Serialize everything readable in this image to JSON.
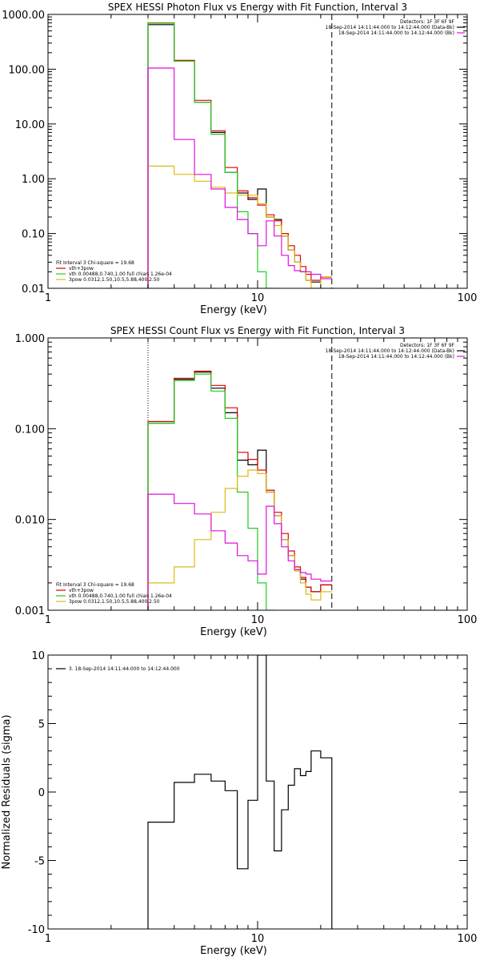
{
  "colors": {
    "background": "#ffffff",
    "axis": "#000000",
    "black": "#000000",
    "red": "#dd0000",
    "green": "#22cc22",
    "magenta": "#dd11dd",
    "yellow": "#ddbb11"
  },
  "chart_data": [
    {
      "type": "line",
      "title": "SPEX HESSI Photon Flux vs Energy with Fit Function, Interval 3",
      "xlabel": "Energy (keV)",
      "ylabel": "",
      "xscale": "log",
      "yscale": "log",
      "xlim": [
        1,
        100
      ],
      "ylim": [
        0.01,
        1000
      ],
      "xticks": [
        1,
        10,
        100
      ],
      "xtick_labels": [
        "1",
        "10",
        "100"
      ],
      "yticks": [
        0.01,
        0.1,
        1,
        10,
        100,
        1000
      ],
      "ytick_labels": [
        "0.01",
        "0.10",
        "1.00",
        "10.00",
        "100.00",
        "1000.00"
      ],
      "vlines": [
        {
          "x": 3,
          "style": "dotted",
          "color": "#ddbb11"
        },
        {
          "x": 22.6,
          "style": "dashed",
          "color": "#000000"
        }
      ],
      "legend_right": [
        "Detectors: 1F 3F 6F 9F",
        "18-Sep-2014 14:11:44.000 to 14:12:44.000 (Data-Bk)",
        "18-Sep-2014 14:11:44.000 to 14:12:44.000 (Bk)"
      ],
      "legend_left": [
        "Fit Interval 3   Chi-square = 19.68",
        "vth+3pow",
        "vth 0.00488,0.740,1.00  full chian 1.26e-04",
        "3pow 0.0312,1.50,10.5,5.88,400,2.50"
      ],
      "bin_edges": [
        3,
        4,
        5,
        6,
        7,
        8,
        9,
        10,
        11,
        12,
        13,
        14,
        15,
        16,
        17,
        18,
        20,
        22.6
      ],
      "series": [
        {
          "name": "18-Sep-2014 14:11:44.000 to 14:12:44.000 (Data-Bk)",
          "color": "#000000",
          "values": [
            650,
            140,
            25,
            7,
            1.3,
            0.55,
            0.42,
            0.65,
            0.2,
            0.18,
            0.09,
            0.05,
            0.03,
            0.02,
            0.014,
            0.013,
            0.016
          ]
        },
        {
          "name": "vth+3pow",
          "color": "#dd0000",
          "values": [
            700,
            145,
            27,
            7.5,
            1.6,
            0.6,
            0.45,
            0.33,
            0.22,
            0.17,
            0.1,
            0.06,
            0.04,
            0.025,
            0.018,
            0.014,
            0.016
          ]
        },
        {
          "name": "vth 0.00488,0.740,1.00  full chian 1.26e-04",
          "color": "#22cc22",
          "values": [
            690,
            140,
            25,
            6.5,
            1.3,
            0.25,
            0.1,
            0.02,
            0.005
          ]
        },
        {
          "name": "3pow 0.0312,1.50,10.5,5.88,400,2.50",
          "color": "#ddbb11",
          "values": [
            1.7,
            1.2,
            0.9,
            0.7,
            0.55,
            0.5,
            0.5,
            0.35,
            0.2,
            0.14,
            0.09,
            0.05,
            0.03,
            0.02,
            0.014,
            0.01,
            0.016
          ]
        },
        {
          "name": "18-Sep-2014 14:11:44.000 to 14:12:44.000 (Bk)",
          "color": "#dd11dd",
          "values": [
            105,
            5.2,
            1.2,
            0.65,
            0.3,
            0.18,
            0.1,
            0.06,
            0.17,
            0.09,
            0.04,
            0.026,
            0.021,
            0.02,
            0.02,
            0.018,
            0.015
          ]
        }
      ]
    },
    {
      "type": "line",
      "title": "SPEX HESSI Count Flux vs Energy with Fit Function, Interval 3",
      "xlabel": "Energy (keV)",
      "ylabel": "",
      "xscale": "log",
      "yscale": "log",
      "xlim": [
        1,
        100
      ],
      "ylim": [
        0.001,
        1
      ],
      "xticks": [
        1,
        10,
        100
      ],
      "xtick_labels": [
        "1",
        "10",
        "100"
      ],
      "yticks": [
        0.001,
        0.01,
        0.1,
        1
      ],
      "ytick_labels": [
        "0.001",
        "0.010",
        "0.100",
        "1.000"
      ],
      "vlines": [
        {
          "x": 3,
          "style": "dotted",
          "color": "#000000"
        },
        {
          "x": 22.6,
          "style": "dashed",
          "color": "#000000"
        }
      ],
      "legend_right": [
        "Detectors: 1F 3F 6F 9F",
        "18-Sep-2014 14:11:44.000 to 14:12:44.000 (Data-Bk)",
        "18-Sep-2014 14:11:44.000 to 14:12:44.000 (Bk)"
      ],
      "legend_left": [
        "Fit Interval 3   Chi-square = 19.68",
        "vth+3pow",
        "vth 0.00488,0.740,1.00  full chian 1.26e-04",
        "3pow 0.0312,1.50,10.5,5.88,400,2.50"
      ],
      "bin_edges": [
        3,
        4,
        5,
        6,
        7,
        8,
        9,
        10,
        11,
        12,
        13,
        14,
        15,
        16,
        17,
        18,
        20,
        22.6
      ],
      "series": [
        {
          "name": "18-Sep-2014 14:11:44.000 to 14:12:44.000 (Data-Bk)",
          "color": "#000000",
          "values": [
            0.115,
            0.35,
            0.42,
            0.28,
            0.15,
            0.045,
            0.04,
            0.058,
            0.02,
            0.011,
            0.006,
            0.004,
            0.0028,
            0.0022,
            0.0018,
            0.0016,
            0.0019
          ]
        },
        {
          "name": "vth+3pow",
          "color": "#dd0000",
          "values": [
            0.12,
            0.36,
            0.43,
            0.3,
            0.17,
            0.055,
            0.046,
            0.035,
            0.021,
            0.012,
            0.007,
            0.0045,
            0.003,
            0.0023,
            0.0018,
            0.0016,
            0.0019
          ]
        },
        {
          "name": "vth 0.00488,0.740,1.00  full chian 1.26e-04",
          "color": "#22cc22",
          "values": [
            0.115,
            0.34,
            0.4,
            0.26,
            0.13,
            0.02,
            0.008,
            0.002,
            0.0006
          ]
        },
        {
          "name": "3pow 0.0312,1.50,10.5,5.88,400,2.50",
          "color": "#ddbb11",
          "values": [
            0.002,
            0.003,
            0.006,
            0.012,
            0.022,
            0.03,
            0.035,
            0.032,
            0.02,
            0.011,
            0.006,
            0.004,
            0.0027,
            0.002,
            0.0015,
            0.0013,
            0.0016
          ]
        },
        {
          "name": "18-Sep-2014 14:11:44.000 to 14:12:44.000 (Bk)",
          "color": "#dd11dd",
          "values": [
            0.019,
            0.015,
            0.0115,
            0.0075,
            0.0055,
            0.004,
            0.0035,
            0.0025,
            0.014,
            0.009,
            0.005,
            0.0035,
            0.0028,
            0.0026,
            0.0025,
            0.0022,
            0.0021
          ]
        }
      ]
    },
    {
      "type": "line",
      "title": "",
      "xlabel": "Energy (keV)",
      "ylabel": "Normalized Residuals (sigma)",
      "xscale": "log",
      "yscale": "linear",
      "xlim": [
        1,
        100
      ],
      "ylim": [
        -10,
        10
      ],
      "xticks": [
        1,
        10,
        100
      ],
      "xtick_labels": [
        "1",
        "10",
        "100"
      ],
      "yticks": [
        -10,
        -5,
        0,
        5,
        10
      ],
      "ytick_labels": [
        "-10",
        "-5",
        "0",
        "5",
        "10"
      ],
      "legend_left": [
        "3. 18-Sep-2014 14:11:44.000 to 14:12:44.000"
      ],
      "bin_edges": [
        3,
        4,
        5,
        6,
        7,
        8,
        9,
        10,
        11,
        12,
        13,
        14,
        15,
        16,
        17,
        18,
        20,
        22.6
      ],
      "series": [
        {
          "name": "3. 18-Sep-2014 14:11:44.000 to 14:12:44.000",
          "color": "#000000",
          "values": [
            -2.2,
            0.7,
            1.3,
            0.8,
            0.1,
            -5.6,
            -0.6,
            10.3,
            0.8,
            -4.3,
            -1.3,
            0.5,
            1.7,
            1.2,
            1.5,
            3.0,
            2.5
          ]
        }
      ]
    }
  ]
}
